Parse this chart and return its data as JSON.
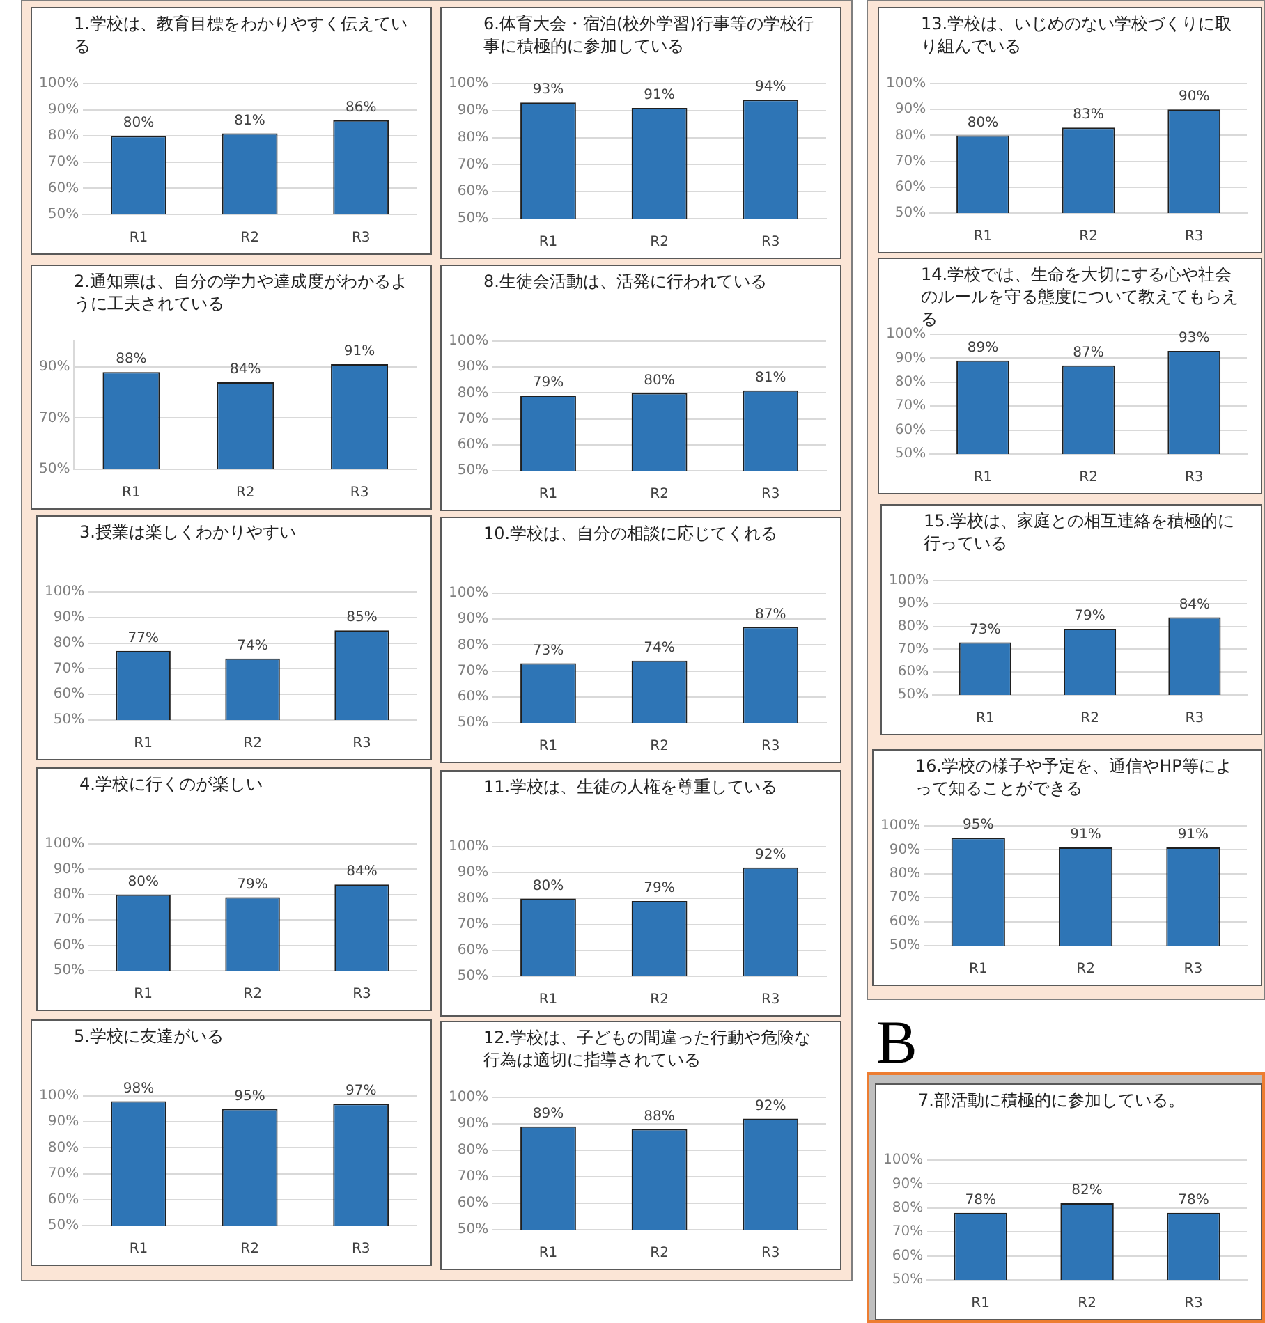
{
  "chart_data": [
    {
      "type": "bar",
      "title": "1.学校は、教育目標をわかりやすく伝えている",
      "categories": [
        "R1",
        "R2",
        "R3"
      ],
      "values": [
        80,
        81,
        86
      ],
      "value_labels": [
        "80%",
        "81%",
        "86%"
      ],
      "color": "#2e75b6",
      "ylim": [
        50,
        100
      ],
      "yticks": [
        {
          "value": 50,
          "label": "50%"
        },
        {
          "value": 60,
          "label": "60%"
        },
        {
          "value": 70,
          "label": "70%"
        },
        {
          "value": 80,
          "label": "80%"
        },
        {
          "value": 90,
          "label": "90%"
        },
        {
          "value": 100,
          "label": "100%"
        }
      ],
      "grid": "y"
    },
    {
      "type": "bar",
      "title": "2.通知票は、自分の学力や達成度がわかるように工夫されている",
      "categories": [
        "R1",
        "R2",
        "R3"
      ],
      "values": [
        88,
        84,
        91
      ],
      "value_labels": [
        "88%",
        "84%",
        "91%"
      ],
      "color": "#2e75b6",
      "ylim": [
        50,
        100
      ],
      "yticks": [
        {
          "value": 50,
          "label": "50%"
        },
        {
          "value": 70,
          "label": "70%"
        },
        {
          "value": 90,
          "label": "90%"
        }
      ],
      "grid": "y"
    },
    {
      "type": "bar",
      "title": "3.授業は楽しくわかりやすい",
      "categories": [
        "R1",
        "R2",
        "R3"
      ],
      "values": [
        77,
        74,
        85
      ],
      "value_labels": [
        "77%",
        "74%",
        "85%"
      ],
      "color": "#2e75b6",
      "ylim": [
        50,
        100
      ],
      "yticks": [
        {
          "value": 50,
          "label": "50%"
        },
        {
          "value": 60,
          "label": "60%"
        },
        {
          "value": 70,
          "label": "70%"
        },
        {
          "value": 80,
          "label": "80%"
        },
        {
          "value": 90,
          "label": "90%"
        },
        {
          "value": 100,
          "label": "100%"
        }
      ],
      "grid": "y"
    },
    {
      "type": "bar",
      "title": "4.学校に行くのが楽しい",
      "categories": [
        "R1",
        "R2",
        "R3"
      ],
      "values": [
        80,
        79,
        84
      ],
      "value_labels": [
        "80%",
        "79%",
        "84%"
      ],
      "color": "#2e75b6",
      "ylim": [
        50,
        100
      ],
      "yticks": [
        {
          "value": 50,
          "label": "50%"
        },
        {
          "value": 60,
          "label": "60%"
        },
        {
          "value": 70,
          "label": "70%"
        },
        {
          "value": 80,
          "label": "80%"
        },
        {
          "value": 90,
          "label": "90%"
        },
        {
          "value": 100,
          "label": "100%"
        }
      ],
      "grid": "y"
    },
    {
      "type": "bar",
      "title": "5.学校に友達がいる",
      "categories": [
        "R1",
        "R2",
        "R3"
      ],
      "values": [
        98,
        95,
        97
      ],
      "value_labels": [
        "98%",
        "95%",
        "97%"
      ],
      "color": "#2e75b6",
      "ylim": [
        50,
        100
      ],
      "yticks": [
        {
          "value": 50,
          "label": "50%"
        },
        {
          "value": 60,
          "label": "60%"
        },
        {
          "value": 70,
          "label": "70%"
        },
        {
          "value": 80,
          "label": "80%"
        },
        {
          "value": 90,
          "label": "90%"
        },
        {
          "value": 100,
          "label": "100%"
        }
      ],
      "grid": "y"
    },
    {
      "type": "bar",
      "title": "6.体育大会・宿泊(校外学習)行事等の学校行事に積極的に参加している",
      "categories": [
        "R1",
        "R2",
        "R3"
      ],
      "values": [
        93,
        91,
        94
      ],
      "value_labels": [
        "93%",
        "91%",
        "94%"
      ],
      "color": "#2e75b6",
      "ylim": [
        50,
        100
      ],
      "yticks": [
        {
          "value": 50,
          "label": "50%"
        },
        {
          "value": 60,
          "label": "60%"
        },
        {
          "value": 70,
          "label": "70%"
        },
        {
          "value": 80,
          "label": "80%"
        },
        {
          "value": 90,
          "label": "90%"
        },
        {
          "value": 100,
          "label": "100%"
        }
      ],
      "grid": "y"
    },
    {
      "type": "bar",
      "title": "8.生徒会活動は、活発に行われている",
      "categories": [
        "R1",
        "R2",
        "R3"
      ],
      "values": [
        79,
        80,
        81
      ],
      "value_labels": [
        "79%",
        "80%",
        "81%"
      ],
      "color": "#2e75b6",
      "ylim": [
        50,
        100
      ],
      "yticks": [
        {
          "value": 50,
          "label": "50%"
        },
        {
          "value": 60,
          "label": "60%"
        },
        {
          "value": 70,
          "label": "70%"
        },
        {
          "value": 80,
          "label": "80%"
        },
        {
          "value": 90,
          "label": "90%"
        },
        {
          "value": 100,
          "label": "100%"
        }
      ],
      "grid": "y"
    },
    {
      "type": "bar",
      "title": "10.学校は、自分の相談に応じてくれる",
      "categories": [
        "R1",
        "R2",
        "R3"
      ],
      "values": [
        73,
        74,
        87
      ],
      "value_labels": [
        "73%",
        "74%",
        "87%"
      ],
      "color": "#2e75b6",
      "ylim": [
        50,
        100
      ],
      "yticks": [
        {
          "value": 50,
          "label": "50%"
        },
        {
          "value": 60,
          "label": "60%"
        },
        {
          "value": 70,
          "label": "70%"
        },
        {
          "value": 80,
          "label": "80%"
        },
        {
          "value": 90,
          "label": "90%"
        },
        {
          "value": 100,
          "label": "100%"
        }
      ],
      "grid": "y"
    },
    {
      "type": "bar",
      "title": "11.学校は、生徒の人権を尊重している",
      "categories": [
        "R1",
        "R2",
        "R3"
      ],
      "values": [
        80,
        79,
        92
      ],
      "value_labels": [
        "80%",
        "79%",
        "92%"
      ],
      "color": "#2e75b6",
      "ylim": [
        50,
        100
      ],
      "yticks": [
        {
          "value": 50,
          "label": "50%"
        },
        {
          "value": 60,
          "label": "60%"
        },
        {
          "value": 70,
          "label": "70%"
        },
        {
          "value": 80,
          "label": "80%"
        },
        {
          "value": 90,
          "label": "90%"
        },
        {
          "value": 100,
          "label": "100%"
        }
      ],
      "grid": "y"
    },
    {
      "type": "bar",
      "title": "12.学校は、子どもの間違った行動や危険な行為は適切に指導されている",
      "categories": [
        "R1",
        "R2",
        "R3"
      ],
      "values": [
        89,
        88,
        92
      ],
      "value_labels": [
        "89%",
        "88%",
        "92%"
      ],
      "color": "#2e75b6",
      "ylim": [
        50,
        100
      ],
      "yticks": [
        {
          "value": 50,
          "label": "50%"
        },
        {
          "value": 60,
          "label": "60%"
        },
        {
          "value": 70,
          "label": "70%"
        },
        {
          "value": 80,
          "label": "80%"
        },
        {
          "value": 90,
          "label": "90%"
        },
        {
          "value": 100,
          "label": "100%"
        }
      ],
      "grid": "y"
    },
    {
      "type": "bar",
      "title": "13.学校は、いじめのない学校づくりに取り組んでいる",
      "categories": [
        "R1",
        "R2",
        "R3"
      ],
      "values": [
        80,
        83,
        90
      ],
      "value_labels": [
        "80%",
        "83%",
        "90%"
      ],
      "color": "#2e75b6",
      "ylim": [
        50,
        100
      ],
      "yticks": [
        {
          "value": 50,
          "label": "50%"
        },
        {
          "value": 60,
          "label": "60%"
        },
        {
          "value": 70,
          "label": "70%"
        },
        {
          "value": 80,
          "label": "80%"
        },
        {
          "value": 90,
          "label": "90%"
        },
        {
          "value": 100,
          "label": "100%"
        }
      ],
      "grid": "y"
    },
    {
      "type": "bar",
      "title": "14.学校では、生命を大切にする心や社会のルールを守る態度について教えてもらえる",
      "categories": [
        "R1",
        "R2",
        "R3"
      ],
      "values": [
        89,
        87,
        93
      ],
      "value_labels": [
        "89%",
        "87%",
        "93%"
      ],
      "color": "#2e75b6",
      "ylim": [
        50,
        100
      ],
      "yticks": [
        {
          "value": 50,
          "label": "50%"
        },
        {
          "value": 60,
          "label": "60%"
        },
        {
          "value": 70,
          "label": "70%"
        },
        {
          "value": 80,
          "label": "80%"
        },
        {
          "value": 90,
          "label": "90%"
        },
        {
          "value": 100,
          "label": "100%"
        }
      ],
      "grid": "y"
    },
    {
      "type": "bar",
      "title": "15.学校は、家庭との相互連絡を積極的に行っている",
      "categories": [
        "R1",
        "R2",
        "R3"
      ],
      "values": [
        73,
        79,
        84
      ],
      "value_labels": [
        "73%",
        "79%",
        "84%"
      ],
      "color": "#2e75b6",
      "ylim": [
        50,
        100
      ],
      "yticks": [
        {
          "value": 50,
          "label": "50%"
        },
        {
          "value": 60,
          "label": "60%"
        },
        {
          "value": 70,
          "label": "70%"
        },
        {
          "value": 80,
          "label": "80%"
        },
        {
          "value": 90,
          "label": "90%"
        },
        {
          "value": 100,
          "label": "100%"
        }
      ],
      "grid": "y"
    },
    {
      "type": "bar",
      "title": "16.学校の様子や予定を、通信やHP等によって知ることができる",
      "categories": [
        "R1",
        "R2",
        "R3"
      ],
      "values": [
        95,
        91,
        91
      ],
      "value_labels": [
        "95%",
        "91%",
        "91%"
      ],
      "color": "#2e75b6",
      "ylim": [
        50,
        100
      ],
      "yticks": [
        {
          "value": 50,
          "label": "50%"
        },
        {
          "value": 60,
          "label": "60%"
        },
        {
          "value": 70,
          "label": "70%"
        },
        {
          "value": 80,
          "label": "80%"
        },
        {
          "value": 90,
          "label": "90%"
        },
        {
          "value": 100,
          "label": "100%"
        }
      ],
      "grid": "y"
    },
    {
      "type": "bar",
      "title": "7.部活動に積極的に参加している。",
      "annotations": [
        "B"
      ],
      "categories": [
        "R1",
        "R2",
        "R3"
      ],
      "values": [
        78,
        82,
        78
      ],
      "value_labels": [
        "78%",
        "82%",
        "78%"
      ],
      "color": "#2e75b6",
      "ylim": [
        50,
        100
      ],
      "yticks": [
        {
          "value": 50,
          "label": "50%"
        },
        {
          "value": 60,
          "label": "60%"
        },
        {
          "value": 70,
          "label": "70%"
        },
        {
          "value": 80,
          "label": "80%"
        },
        {
          "value": 90,
          "label": "90%"
        },
        {
          "value": 100,
          "label": "100%"
        }
      ],
      "grid": "y"
    }
  ]
}
